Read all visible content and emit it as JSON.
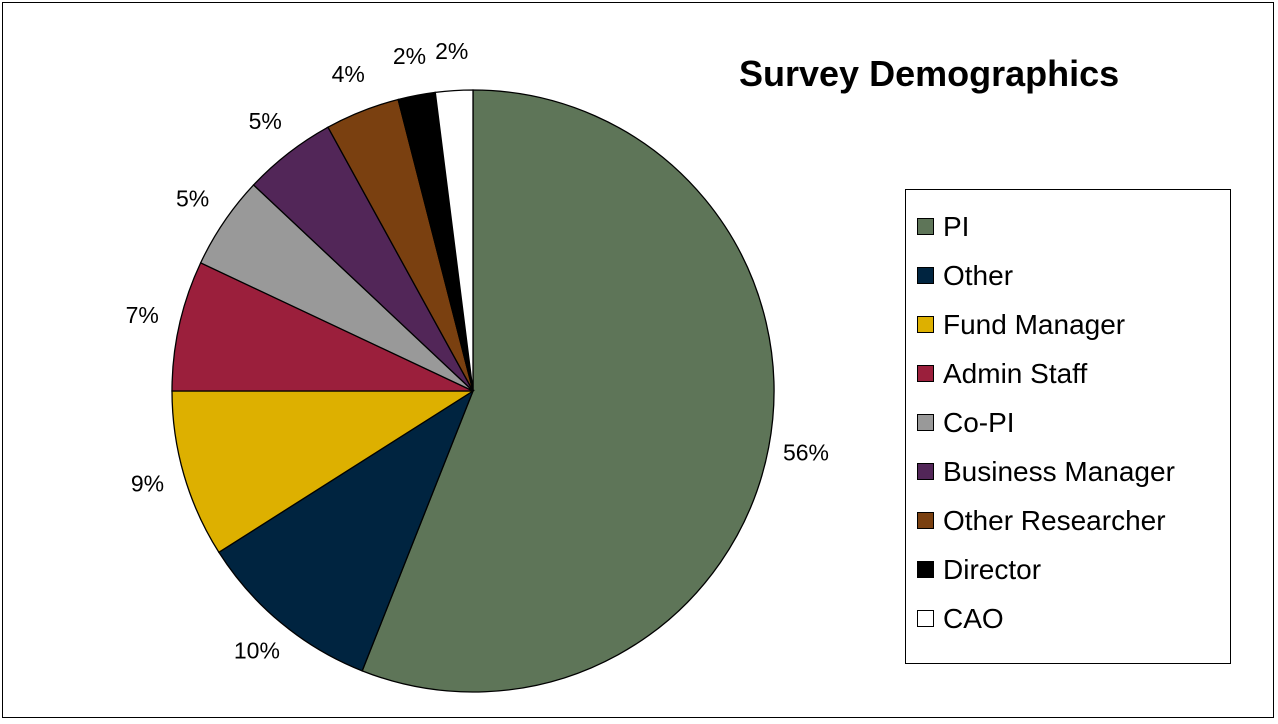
{
  "chart_data": {
    "type": "pie",
    "title": "Survey Demographics",
    "legend_position": "right",
    "slices": [
      {
        "name": "PI",
        "value": 56,
        "label": "56%",
        "color": "#5E7558"
      },
      {
        "name": "Other",
        "value": 10,
        "label": "10%",
        "color": "#002440"
      },
      {
        "name": "Fund Manager",
        "value": 9,
        "label": "9%",
        "color": "#DDB000"
      },
      {
        "name": "Admin Staff",
        "value": 7,
        "label": "7%",
        "color": "#9B1F3C"
      },
      {
        "name": "Co-PI",
        "value": 5,
        "label": "5%",
        "color": "#999999"
      },
      {
        "name": "Business Manager",
        "value": 5,
        "label": "5%",
        "color": "#522658"
      },
      {
        "name": "Other Researcher",
        "value": 4,
        "label": "4%",
        "color": "#7A4010"
      },
      {
        "name": "Director",
        "value": 2,
        "label": "2%",
        "color": "#000000"
      },
      {
        "name": "CAO",
        "value": 2,
        "label": "2%",
        "color": "#FFFFFF"
      }
    ]
  }
}
